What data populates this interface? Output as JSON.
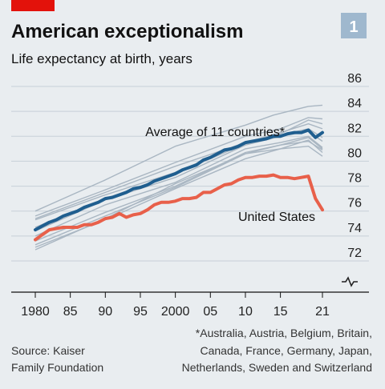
{
  "header": {
    "title": "American exceptionalism",
    "subtitle": "Life expectancy at birth, years",
    "chart_number": "1"
  },
  "footer": {
    "source_lines": [
      "Source: Kaiser",
      "Family Foundation"
    ],
    "note_lines": [
      "*Australia, Austria, Belgium, Britain,",
      "Canada, France, Germany, Japan,",
      "Netherlands, Sweden and Switzerland"
    ]
  },
  "colors": {
    "background": "#e9edf0",
    "average": "#1f5e8f",
    "united_states": "#e8604a",
    "countries": "#a9b6c2",
    "accent_bar": "#e3120b",
    "badge": "#9fb8ce"
  },
  "chart_data": {
    "type": "line",
    "title": "American exceptionalism",
    "subtitle": "Life expectancy at birth, years",
    "xlabel": "",
    "ylabel": "",
    "x_tick_labels": [
      "1980",
      "85",
      "90",
      "95",
      "2000",
      "05",
      "10",
      "15",
      "21"
    ],
    "x_tick_years": [
      1980,
      1985,
      1990,
      1995,
      2000,
      2005,
      2010,
      2015,
      2021
    ],
    "y_ticks": [
      72,
      74,
      76,
      78,
      80,
      82,
      84,
      86
    ],
    "xlim": [
      1980,
      2021
    ],
    "ylim": [
      72,
      86
    ],
    "y_axis_break": true,
    "grid": true,
    "series": [
      {
        "name": "Average of 11 countries*",
        "label_position": "top",
        "x": [
          1980,
          1981,
          1982,
          1983,
          1984,
          1985,
          1986,
          1987,
          1988,
          1989,
          1990,
          1991,
          1992,
          1993,
          1994,
          1995,
          1996,
          1997,
          1998,
          1999,
          2000,
          2001,
          2002,
          2003,
          2004,
          2005,
          2006,
          2007,
          2008,
          2009,
          2010,
          2011,
          2012,
          2013,
          2014,
          2015,
          2016,
          2017,
          2018,
          2019,
          2020,
          2021
        ],
        "y": [
          74.5,
          74.8,
          75.1,
          75.3,
          75.6,
          75.8,
          76.0,
          76.3,
          76.5,
          76.7,
          77.0,
          77.1,
          77.3,
          77.5,
          77.8,
          77.9,
          78.1,
          78.4,
          78.6,
          78.8,
          79.0,
          79.3,
          79.5,
          79.7,
          80.1,
          80.3,
          80.6,
          80.9,
          81.0,
          81.2,
          81.5,
          81.6,
          81.7,
          81.8,
          82.0,
          82.0,
          82.2,
          82.3,
          82.3,
          82.5,
          81.9,
          82.3
        ]
      },
      {
        "name": "United States",
        "label_position": "bottom",
        "x": [
          1980,
          1981,
          1982,
          1983,
          1984,
          1985,
          1986,
          1987,
          1988,
          1989,
          1990,
          1991,
          1992,
          1993,
          1994,
          1995,
          1996,
          1997,
          1998,
          1999,
          2000,
          2001,
          2002,
          2003,
          2004,
          2005,
          2006,
          2007,
          2008,
          2009,
          2010,
          2011,
          2012,
          2013,
          2014,
          2015,
          2016,
          2017,
          2018,
          2019,
          2020,
          2021
        ],
        "y": [
          73.7,
          74.1,
          74.5,
          74.6,
          74.7,
          74.7,
          74.7,
          74.9,
          74.9,
          75.1,
          75.4,
          75.5,
          75.8,
          75.5,
          75.7,
          75.8,
          76.1,
          76.5,
          76.7,
          76.7,
          76.8,
          77.0,
          77.0,
          77.1,
          77.5,
          77.5,
          77.8,
          78.1,
          78.2,
          78.5,
          78.7,
          78.7,
          78.8,
          78.8,
          78.9,
          78.7,
          78.7,
          78.6,
          78.7,
          78.8,
          77.0,
          76.1
        ]
      }
    ],
    "background_series": [
      {
        "x": [
          1980,
          1990,
          2000,
          2010,
          2014,
          2019,
          2021
        ],
        "y": [
          76.0,
          78.5,
          81.2,
          82.9,
          83.7,
          84.4,
          84.5
        ]
      },
      {
        "x": [
          1980,
          1990,
          2000,
          2010,
          2015,
          2019,
          2021
        ],
        "y": [
          75.6,
          77.7,
          79.9,
          82.0,
          82.6,
          83.5,
          83.4
        ]
      },
      {
        "x": [
          1980,
          1990,
          2000,
          2010,
          2015,
          2019,
          2021
        ],
        "y": [
          75.4,
          77.5,
          79.6,
          81.5,
          82.2,
          83.3,
          83.0
        ]
      },
      {
        "x": [
          1980,
          1990,
          2000,
          2010,
          2015,
          2019,
          2021
        ],
        "y": [
          75.3,
          77.3,
          79.1,
          81.5,
          82.3,
          83.0,
          82.6
        ]
      },
      {
        "x": [
          1980,
          1990,
          2000,
          2010,
          2015,
          2019,
          2021
        ],
        "y": [
          74.7,
          77.0,
          79.0,
          81.4,
          82.1,
          82.6,
          81.9
        ]
      },
      {
        "x": [
          1980,
          1990,
          2000,
          2010,
          2015,
          2019,
          2021
        ],
        "y": [
          74.4,
          76.9,
          78.7,
          81.3,
          82.0,
          82.4,
          81.6
        ]
      },
      {
        "x": [
          1980,
          1990,
          2000,
          2010,
          2015,
          2019,
          2021
        ],
        "y": [
          74.0,
          76.5,
          78.3,
          81.0,
          81.5,
          82.0,
          81.1
        ]
      },
      {
        "x": [
          1980,
          1990,
          2000,
          2010,
          2015,
          2019,
          2021
        ],
        "y": [
          73.6,
          75.9,
          78.0,
          80.7,
          81.3,
          81.9,
          81.0
        ]
      },
      {
        "x": [
          1980,
          1990,
          2000,
          2010,
          2015,
          2019,
          2021
        ],
        "y": [
          73.3,
          75.6,
          77.9,
          80.6,
          81.0,
          81.7,
          80.7
        ]
      },
      {
        "x": [
          1980,
          1990,
          2000,
          2010,
          2015,
          2019,
          2021
        ],
        "y": [
          73.1,
          75.3,
          77.8,
          80.2,
          81.0,
          81.2,
          80.4
        ]
      },
      {
        "x": [
          1980,
          1990,
          2000,
          2010,
          2015,
          2019,
          2021
        ],
        "y": [
          72.9,
          75.4,
          78.2,
          80.6,
          81.3,
          81.6,
          80.9
        ]
      }
    ]
  }
}
